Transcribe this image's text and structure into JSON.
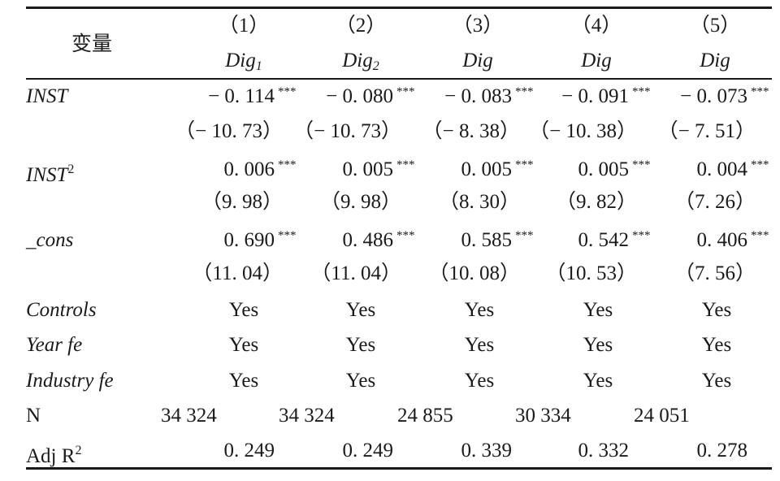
{
  "header": {
    "variable_label": "变量",
    "columns": [
      {
        "num": "（1）",
        "dep": "Dig",
        "sub": "1"
      },
      {
        "num": "（2）",
        "dep": "Dig",
        "sub": "2"
      },
      {
        "num": "（3）",
        "dep": "Dig",
        "sub": ""
      },
      {
        "num": "（4）",
        "dep": "Dig",
        "sub": ""
      },
      {
        "num": "（5）",
        "dep": "Dig",
        "sub": ""
      }
    ]
  },
  "rows": {
    "inst": {
      "label": "INST",
      "coef": [
        "− 0. 114",
        "− 0. 080",
        "− 0. 083",
        "− 0. 091",
        "− 0. 073"
      ],
      "stars": [
        "***",
        "***",
        "***",
        "***",
        "***"
      ],
      "t": [
        "（− 10. 73）",
        "（− 10. 73）",
        "（− 8. 38）",
        "（− 10. 38）",
        "（− 7. 51）"
      ]
    },
    "inst2": {
      "label": "INST",
      "sup": "2",
      "coef": [
        "0. 006",
        "0. 005",
        "0. 005",
        "0. 005",
        "0. 004"
      ],
      "stars": [
        "***",
        "***",
        "***",
        "***",
        "***"
      ],
      "t": [
        "（9. 98）",
        "（9. 98）",
        "（8. 30）",
        "（9. 82）",
        "（7. 26）"
      ]
    },
    "cons": {
      "label": "_cons",
      "coef": [
        "0. 690",
        "0. 486",
        "0. 585",
        "0. 542",
        "0. 406"
      ],
      "stars": [
        "***",
        "***",
        "***",
        "***",
        "***"
      ],
      "t": [
        "（11. 04）",
        "（11. 04）",
        "（10. 08）",
        "（10. 53）",
        "（7. 56）"
      ]
    },
    "controls": {
      "label": "Controls",
      "values": [
        "Yes",
        "Yes",
        "Yes",
        "Yes",
        "Yes"
      ]
    },
    "year_fe": {
      "label": "Year fe",
      "values": [
        "Yes",
        "Yes",
        "Yes",
        "Yes",
        "Yes"
      ]
    },
    "industry_fe": {
      "label": "Industry fe",
      "values": [
        "Yes",
        "Yes",
        "Yes",
        "Yes",
        "Yes"
      ]
    },
    "n": {
      "label": "N",
      "values": [
        "34 324",
        "34 324",
        "24 855",
        "30 334",
        "24 051"
      ]
    },
    "adj_r2": {
      "label": "Adj R",
      "sup": "2",
      "values": [
        "0. 249",
        "0. 249",
        "0. 339",
        "0. 332",
        "0. 278"
      ]
    }
  }
}
